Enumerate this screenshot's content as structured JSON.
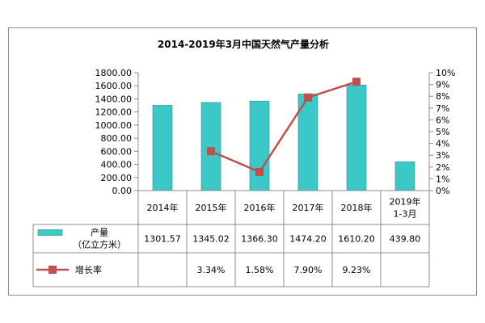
{
  "chart_data": {
    "type": "bar",
    "title": "2014-2019年3月中国天然气产量分析",
    "categories": [
      "2014年",
      "2015年",
      "2016年",
      "2017年",
      "2018年",
      "2019年\n1-3月"
    ],
    "categories_display": [
      [
        "2014年"
      ],
      [
        "2015年"
      ],
      [
        "2016年"
      ],
      [
        "2017年"
      ],
      [
        "2018年"
      ],
      [
        "2019年",
        "1-3月"
      ]
    ],
    "series": [
      {
        "name": "产量\n（亿立方米）",
        "name_lines": [
          "产量",
          "（亿立方米）"
        ],
        "type": "bar",
        "axis": "left",
        "color": "#3cc8c8",
        "values": [
          1301.57,
          1345.02,
          1366.3,
          1474.2,
          1610.2,
          439.8
        ],
        "table_labels": [
          "1301.57",
          "1345.02",
          "1366.30",
          "1474.20",
          "1610.20",
          "439.80"
        ]
      },
      {
        "name": "增长率",
        "type": "line",
        "axis": "right",
        "color": "#c0504d",
        "values": [
          null,
          3.34,
          1.58,
          7.9,
          9.23,
          null
        ],
        "table_labels": [
          "",
          "3.34%",
          "1.58%",
          "7.90%",
          "9.23%",
          ""
        ]
      }
    ],
    "y_left": {
      "range": [
        0,
        1800
      ],
      "ticks": [
        "0.00",
        "200.00",
        "400.00",
        "600.00",
        "800.00",
        "1000.00",
        "1200.00",
        "1400.00",
        "1600.00",
        "1800.00"
      ]
    },
    "y_right": {
      "range": [
        0,
        10
      ],
      "ticks": [
        "0%",
        "1%",
        "2%",
        "3%",
        "4%",
        "5%",
        "6%",
        "7%",
        "8%",
        "9%",
        "10%"
      ]
    },
    "grid": false,
    "legend": "data-table"
  }
}
